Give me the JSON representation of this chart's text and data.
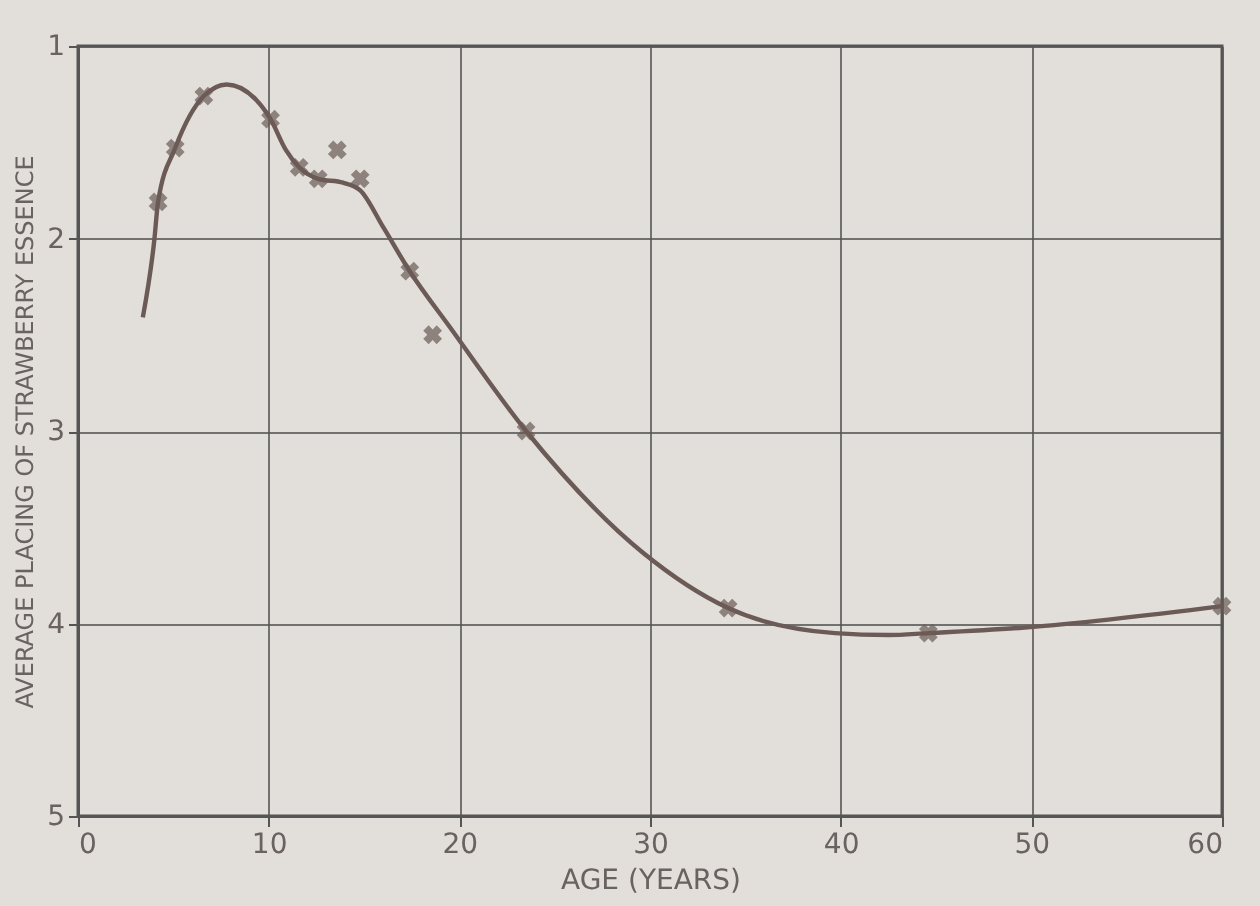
{
  "chart_data": {
    "type": "line",
    "xlabel": "AGE (YEARS)",
    "ylabel": "AVERAGE PLACING OF STRAWBERRY ESSENCE",
    "xlim": [
      0,
      60
    ],
    "ylim": [
      5,
      1
    ],
    "xticks": [
      0,
      10,
      20,
      30,
      40,
      50,
      60
    ],
    "yticks": [
      1,
      2,
      3,
      4,
      5
    ],
    "grid": true,
    "series": [
      {
        "color": "#6b5a55",
        "marker": "none",
        "line_style": "solid",
        "x": [
          3.4,
          4.0,
          4.2,
          5.1,
          6.6,
          7.8,
          9.35,
          10.1,
          10.9,
          11.6,
          12.6,
          13.9,
          14.8,
          16.0,
          17.4,
          19.5,
          23.5,
          29.6,
          34.1,
          39.7,
          42.5,
          44.6,
          49.8,
          60
        ],
        "values": [
          2.41,
          2.01,
          1.81,
          1.53,
          1.26,
          1.2,
          1.28,
          1.38,
          1.54,
          1.63,
          1.69,
          1.71,
          1.75,
          1.94,
          2.17,
          2.46,
          3.0,
          3.63,
          3.92,
          4.05,
          4.06,
          4.05,
          4.02,
          3.91
        ]
      },
      {
        "type": "scatter",
        "color": "#6b5a55",
        "marker": "cross",
        "x": [
          4.2,
          5.1,
          6.6,
          10.1,
          11.6,
          12.6,
          13.6,
          14.8,
          17.4,
          18.6,
          23.5,
          34.1,
          44.6,
          60
        ],
        "values": [
          1.81,
          1.53,
          1.26,
          1.38,
          1.63,
          1.69,
          1.54,
          1.69,
          2.17,
          2.5,
          3.0,
          3.92,
          4.05,
          3.91
        ]
      }
    ]
  }
}
